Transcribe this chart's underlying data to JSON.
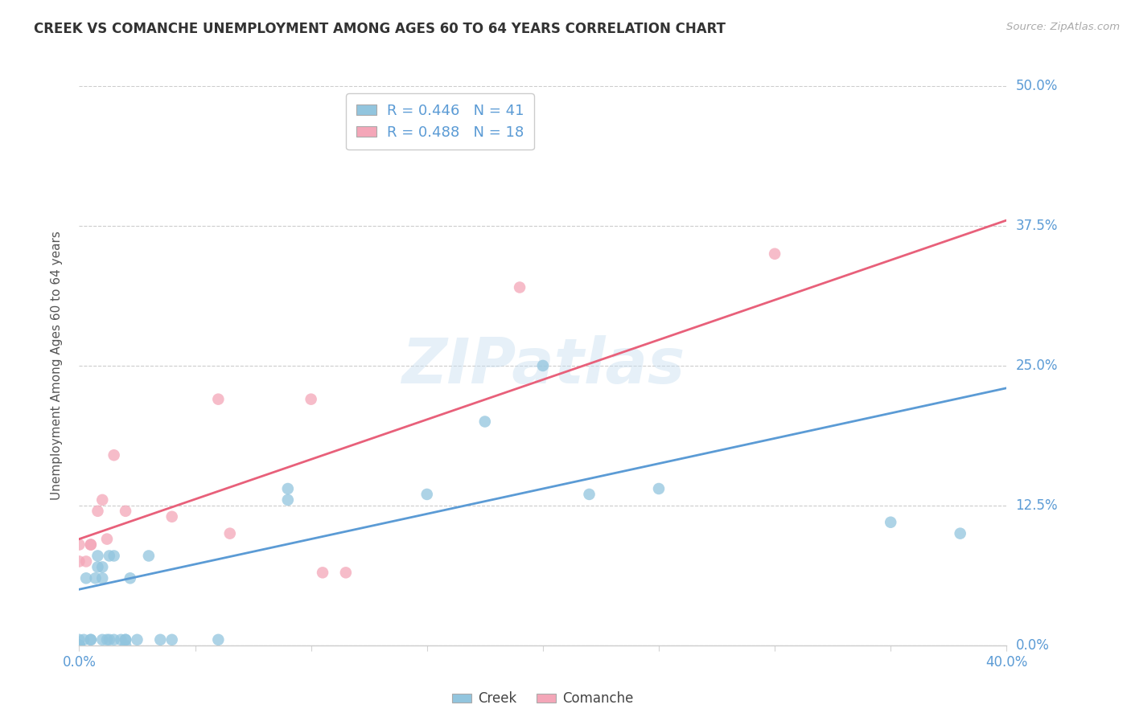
{
  "title": "CREEK VS COMANCHE UNEMPLOYMENT AMONG AGES 60 TO 64 YEARS CORRELATION CHART",
  "source": "Source: ZipAtlas.com",
  "ylabel": "Unemployment Among Ages 60 to 64 years",
  "xlim": [
    0.0,
    0.4
  ],
  "ylim": [
    0.0,
    0.5
  ],
  "yticks": [
    0.0,
    0.125,
    0.25,
    0.375,
    0.5
  ],
  "ytick_labels": [
    "0.0%",
    "12.5%",
    "25.0%",
    "37.5%",
    "50.0%"
  ],
  "xticks": [
    0.0,
    0.05,
    0.1,
    0.15,
    0.2,
    0.25,
    0.3,
    0.35,
    0.4
  ],
  "xtick_labels": [
    "0.0%",
    "",
    "",
    "",
    "",
    "",
    "",
    "",
    "40.0%"
  ],
  "creek_color": "#92c5de",
  "comanche_color": "#f4a6b8",
  "creek_line_color": "#5b9bd5",
  "comanche_line_color": "#e8607a",
  "creek_R": 0.446,
  "creek_N": 41,
  "comanche_R": 0.488,
  "comanche_N": 18,
  "watermark": "ZIPatlas",
  "creek_x": [
    0.0,
    0.0,
    0.0,
    0.0,
    0.0,
    0.0,
    0.0,
    0.002,
    0.003,
    0.005,
    0.005,
    0.007,
    0.008,
    0.008,
    0.01,
    0.01,
    0.01,
    0.012,
    0.013,
    0.013,
    0.015,
    0.015,
    0.018,
    0.02,
    0.02,
    0.02,
    0.022,
    0.025,
    0.03,
    0.035,
    0.04,
    0.06,
    0.09,
    0.09,
    0.15,
    0.175,
    0.2,
    0.22,
    0.25,
    0.35,
    0.38
  ],
  "creek_y": [
    0.0,
    0.0,
    0.0,
    0.0,
    0.0,
    0.0,
    0.005,
    0.005,
    0.06,
    0.005,
    0.005,
    0.06,
    0.07,
    0.08,
    0.005,
    0.06,
    0.07,
    0.005,
    0.005,
    0.08,
    0.005,
    0.08,
    0.005,
    0.0,
    0.005,
    0.005,
    0.06,
    0.005,
    0.08,
    0.005,
    0.005,
    0.005,
    0.13,
    0.14,
    0.135,
    0.2,
    0.25,
    0.135,
    0.14,
    0.11,
    0.1
  ],
  "comanche_x": [
    0.0,
    0.0,
    0.003,
    0.005,
    0.005,
    0.008,
    0.01,
    0.012,
    0.015,
    0.02,
    0.04,
    0.06,
    0.065,
    0.1,
    0.105,
    0.115,
    0.19,
    0.3
  ],
  "comanche_y": [
    0.075,
    0.09,
    0.075,
    0.09,
    0.09,
    0.12,
    0.13,
    0.095,
    0.17,
    0.12,
    0.115,
    0.22,
    0.1,
    0.22,
    0.065,
    0.065,
    0.32,
    0.35
  ],
  "creek_line_x0": 0.0,
  "creek_line_x1": 0.4,
  "creek_line_y0": 0.05,
  "creek_line_y1": 0.23,
  "comanche_line_x0": 0.0,
  "comanche_line_x1": 0.4,
  "comanche_line_y0": 0.095,
  "comanche_line_y1": 0.38
}
